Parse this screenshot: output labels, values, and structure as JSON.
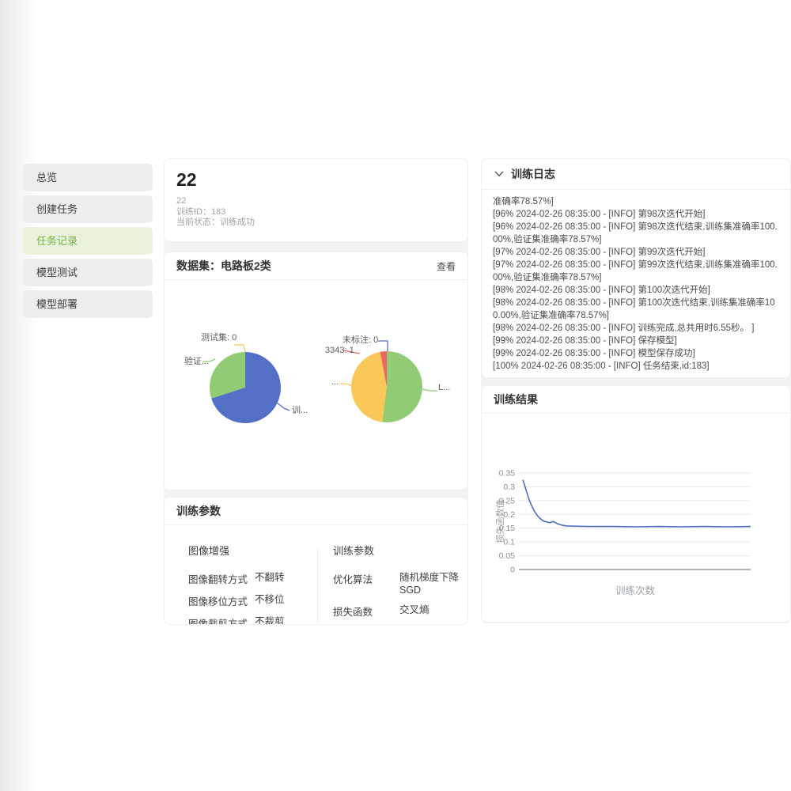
{
  "colors": {
    "accent_green": "#74b43c",
    "active_item_bg": "#e8f2dd",
    "pie_blue": "#5470c6",
    "pie_green": "#91cc75",
    "pie_yellow": "#fac858",
    "pie_red": "#ee6666",
    "loss_line": "#4a6cc3"
  },
  "sidebar": {
    "items": [
      {
        "label": "总览",
        "active": false
      },
      {
        "label": "创建任务",
        "active": false
      },
      {
        "label": "任务记录",
        "active": true
      },
      {
        "label": "模型测试",
        "active": false
      },
      {
        "label": "模型部署",
        "active": false
      }
    ]
  },
  "overview": {
    "title": "22",
    "name": "22",
    "train_id_label": "训练ID：",
    "train_id": "183",
    "status_label": "当前状态：",
    "status": "训练成功"
  },
  "dataset": {
    "title": "数据集：电路板2类",
    "view_label": "查看"
  },
  "params": {
    "title": "训练参数",
    "groups": [
      {
        "title": "图像增强",
        "rows": [
          {
            "label": "图像翻转方式",
            "value": "不翻转"
          },
          {
            "label": "图像移位方式",
            "value": "不移位"
          },
          {
            "label": "图像裁剪方式",
            "value": "不裁剪"
          }
        ]
      },
      {
        "title": "训练参数",
        "rows": [
          {
            "label": "优化算法",
            "value": "随机梯度下降 SGD"
          },
          {
            "label": "损失函数",
            "value": "交叉熵"
          }
        ]
      }
    ]
  },
  "log": {
    "title": "训练日志",
    "lines": [
      "准确率78.57%]",
      "[96% 2024-02-26 08:35:00 - [INFO] 第98次迭代开始]",
      "[96% 2024-02-26 08:35:00 - [INFO] 第98次迭代结束,训练集准确率100.00%,验证集准确率78.57%]",
      "[97% 2024-02-26 08:35:00 - [INFO] 第99次迭代开始]",
      "[97% 2024-02-26 08:35:00 - [INFO] 第99次迭代结束,训练集准确率100.00%,验证集准确率78.57%]",
      "[98% 2024-02-26 08:35:00 - [INFO] 第100次迭代开始]",
      "[98% 2024-02-26 08:35:00 - [INFO] 第100次迭代结束,训练集准确率100.00%,验证集准确率78.57%]",
      "[98% 2024-02-26 08:35:00 - [INFO] 训练完成,总共用时6.55秒。 ]",
      "[99% 2024-02-26 08:35:00 - [INFO] 保存模型]",
      "[99% 2024-02-26 08:35:00 - [INFO] 模型保存成功]",
      "[100% 2024-02-26 08:35:00 - [INFO] 任务结束,id:183]"
    ]
  },
  "results": {
    "title": "训练结果"
  },
  "chart_data": [
    {
      "id": "dataset-split-pie",
      "type": "pie",
      "slices": [
        {
          "label": "训练集",
          "shown": "训...",
          "percent": 70,
          "color": "#5470c6"
        },
        {
          "label": "验证集",
          "shown": "验证...",
          "percent": 30,
          "color": "#91cc75"
        },
        {
          "label": "测试集",
          "shown": "测试集: 0",
          "percent": 0,
          "value": 0,
          "color": "#fac858"
        }
      ]
    },
    {
      "id": "dataset-label-pie",
      "type": "pie",
      "slices": [
        {
          "label": "L...",
          "shown": "L...",
          "percent": 52,
          "color": "#91cc75"
        },
        {
          "label": "...",
          "shown": "...",
          "percent": 45,
          "color": "#fac858"
        },
        {
          "label": "3343",
          "shown": "3343: 1",
          "percent": 3,
          "value": 1,
          "color": "#ee6666"
        },
        {
          "label": "未标注",
          "shown": "未标注: 0",
          "percent": 0,
          "value": 0,
          "color": "#5470c6"
        }
      ]
    },
    {
      "id": "loss-curve",
      "type": "line",
      "title": "",
      "xlabel": "训练次数",
      "ylabel": "损失函数值",
      "ylim": [
        0,
        0.35
      ],
      "ytick_step": 0.05,
      "grid": true,
      "color": "#4a6cc3",
      "x": [
        1,
        2,
        3,
        4,
        5,
        6,
        7,
        8,
        9,
        10,
        12,
        13,
        14,
        15,
        16,
        18,
        20,
        25,
        30,
        40,
        50,
        60,
        70,
        80,
        90,
        100
      ],
      "y": [
        0.325,
        0.3,
        0.272,
        0.248,
        0.228,
        0.212,
        0.199,
        0.189,
        0.182,
        0.176,
        0.171,
        0.17,
        0.174,
        0.171,
        0.166,
        0.161,
        0.158,
        0.157,
        0.156,
        0.156,
        0.155,
        0.156,
        0.155,
        0.156,
        0.155,
        0.156
      ]
    }
  ]
}
